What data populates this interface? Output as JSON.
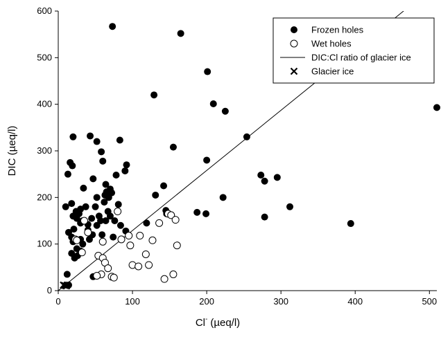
{
  "chart_data": {
    "type": "scatter",
    "xlabel": "Cl",
    "xlabel_sup": "-",
    "xlabel_units": "(µeq/l)",
    "ylabel": "DIC (µeq/l)",
    "xlim": [
      0,
      510
    ],
    "ylim": [
      0,
      600
    ],
    "x_ticks": [
      0,
      100,
      200,
      300,
      400,
      500
    ],
    "y_ticks": [
      0,
      100,
      200,
      300,
      400,
      500,
      600
    ],
    "legend_position": "top-right",
    "series": [
      {
        "name": "Frozen holes",
        "marker": "filled-circle",
        "color": "#000000",
        "points": [
          [
            73,
            567
          ],
          [
            165,
            552
          ],
          [
            201,
            470
          ],
          [
            129,
            420
          ],
          [
            209,
            401
          ],
          [
            225,
            385
          ],
          [
            254,
            330
          ],
          [
            394,
            144
          ],
          [
            510,
            393
          ],
          [
            20,
            330
          ],
          [
            43,
            332
          ],
          [
            52,
            320
          ],
          [
            83,
            323
          ],
          [
            90,
            257
          ],
          [
            92,
            270
          ],
          [
            58,
            298
          ],
          [
            60,
            278
          ],
          [
            13,
            250
          ],
          [
            16,
            275
          ],
          [
            19,
            268
          ],
          [
            155,
            308
          ],
          [
            200,
            280
          ],
          [
            142,
            225
          ],
          [
            131,
            205
          ],
          [
            78,
            248
          ],
          [
            64,
            228
          ],
          [
            65,
            212
          ],
          [
            72,
            210
          ],
          [
            63,
            205
          ],
          [
            68,
            200
          ],
          [
            273,
            248
          ],
          [
            278,
            235
          ],
          [
            295,
            243
          ],
          [
            222,
            200
          ],
          [
            187,
            168
          ],
          [
            199,
            165
          ],
          [
            278,
            158
          ],
          [
            312,
            180
          ],
          [
            119,
            145
          ],
          [
            145,
            172
          ],
          [
            146,
            165
          ],
          [
            91,
            128
          ],
          [
            81,
            185
          ],
          [
            74,
            115
          ],
          [
            84,
            140
          ],
          [
            76,
            150
          ],
          [
            47,
            240
          ],
          [
            34,
            220
          ],
          [
            37,
            180
          ],
          [
            30,
            175
          ],
          [
            25,
            155
          ],
          [
            20,
            160
          ],
          [
            30,
            145
          ],
          [
            40,
            142
          ],
          [
            40,
            130
          ],
          [
            18,
            115
          ],
          [
            20,
            105
          ],
          [
            25,
            90
          ],
          [
            30,
            85
          ],
          [
            33,
            100
          ],
          [
            14,
            125
          ],
          [
            10,
            180
          ],
          [
            18,
            187
          ],
          [
            28,
            165
          ],
          [
            24,
            170
          ],
          [
            21,
            132
          ],
          [
            33,
            150
          ],
          [
            45,
            155
          ],
          [
            46,
            120
          ],
          [
            42,
            110
          ],
          [
            50,
            180
          ],
          [
            52,
            200
          ],
          [
            55,
            160
          ],
          [
            57,
            150
          ],
          [
            59,
            120
          ],
          [
            62,
            190
          ],
          [
            64,
            150
          ],
          [
            67,
            170
          ],
          [
            70,
            160
          ],
          [
            52,
            140
          ],
          [
            70,
            218
          ],
          [
            18,
            80
          ],
          [
            22,
            70
          ],
          [
            26,
            75
          ],
          [
            12,
            35
          ],
          [
            47,
            30
          ],
          [
            14,
            12
          ],
          [
            30,
            110
          ]
        ]
      },
      {
        "name": "Wet holes",
        "marker": "open-circle",
        "color": "#000000",
        "points": [
          [
            23,
            110
          ],
          [
            25,
            108
          ],
          [
            32,
            82
          ],
          [
            40,
            125
          ],
          [
            60,
            105
          ],
          [
            54,
            75
          ],
          [
            60,
            70
          ],
          [
            63,
            60
          ],
          [
            58,
            35
          ],
          [
            52,
            32
          ],
          [
            67,
            48
          ],
          [
            72,
            30
          ],
          [
            75,
            28
          ],
          [
            95,
            118
          ],
          [
            97,
            97
          ],
          [
            100,
            55
          ],
          [
            108,
            52
          ],
          [
            110,
            118
          ],
          [
            118,
            78
          ],
          [
            122,
            55
          ],
          [
            127,
            108
          ],
          [
            136,
            145
          ],
          [
            143,
            25
          ],
          [
            148,
            165
          ],
          [
            152,
            162
          ],
          [
            158,
            152
          ],
          [
            160,
            97
          ],
          [
            155,
            35
          ],
          [
            80,
            170
          ],
          [
            35,
            150
          ],
          [
            85,
            110
          ]
        ]
      },
      {
        "name": "DIC:Cl ratio of glacier ice",
        "marker": "line",
        "color": "#000000",
        "slope": 1.29,
        "intercept": 0
      },
      {
        "name": "Glacier ice",
        "marker": "x",
        "color": "#000000",
        "points": [
          [
            7,
            12
          ],
          [
            9,
            11
          ],
          [
            12,
            12
          ],
          [
            11,
            10
          ]
        ]
      }
    ]
  }
}
